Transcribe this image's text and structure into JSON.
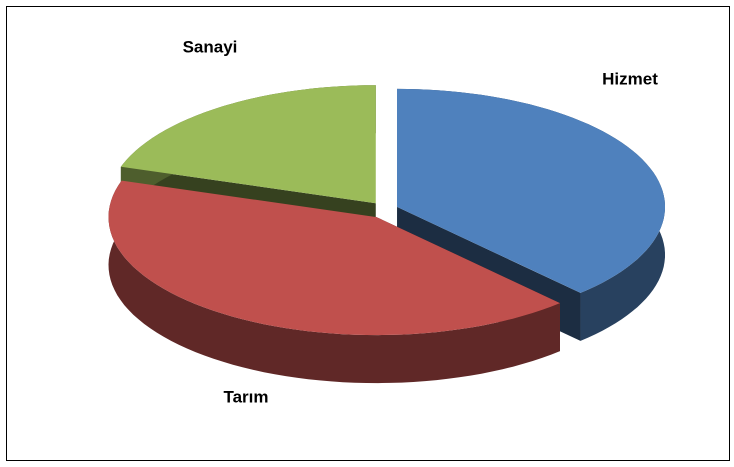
{
  "chart_data": {
    "type": "pie",
    "categories": [
      "Hizmet",
      "Tarım",
      "Sanayi"
    ],
    "values": [
      38,
      42,
      20
    ],
    "colors": [
      "#4f81bd",
      "#c0504d",
      "#9bbb59"
    ]
  }
}
